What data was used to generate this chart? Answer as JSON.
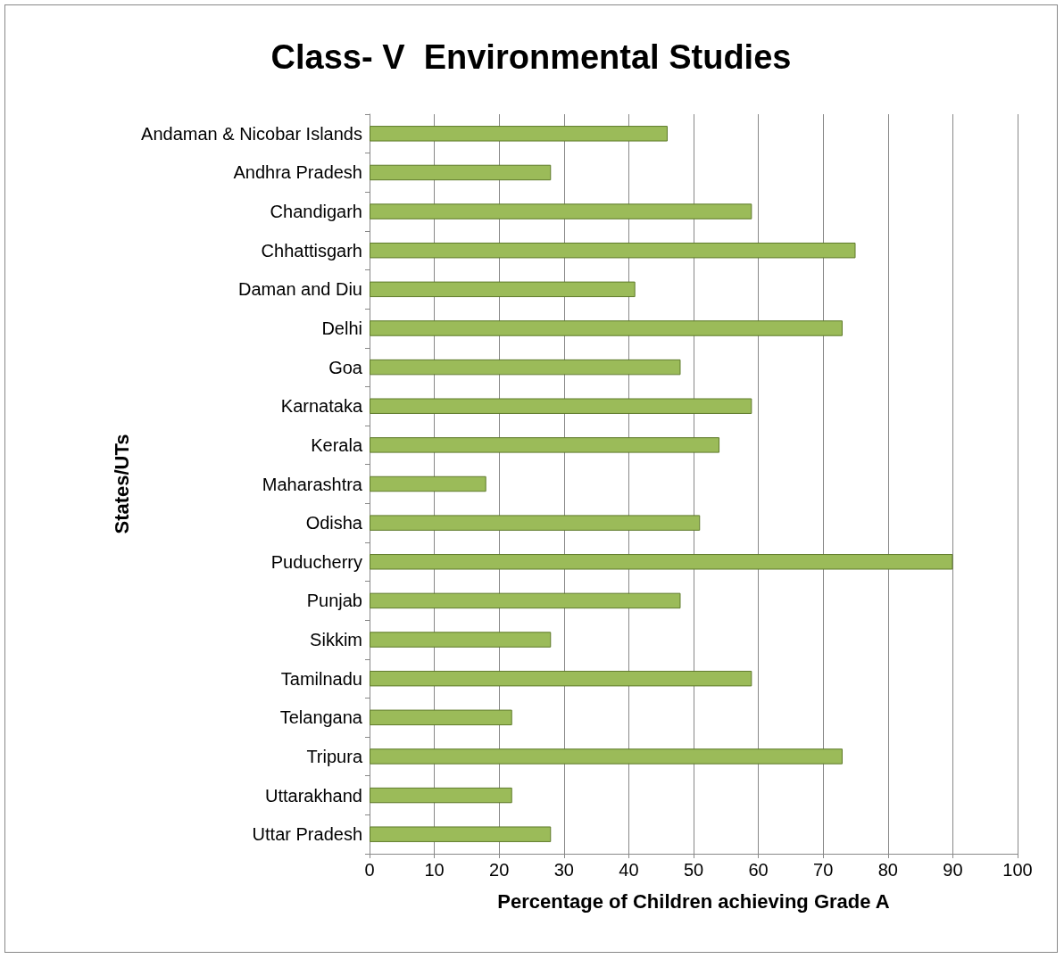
{
  "chart_data": {
    "type": "bar",
    "orientation": "horizontal",
    "title": "Class- V  Environmental Studies",
    "xlabel": "Percentage of Children achieving Grade A",
    "ylabel": "States/UTs",
    "categories": [
      "Andaman & Nicobar Islands",
      "Andhra Pradesh",
      "Chandigarh",
      "Chhattisgarh",
      "Daman and Diu",
      "Delhi",
      "Goa",
      "Karnataka",
      "Kerala",
      "Maharashtra",
      "Odisha",
      "Puducherry",
      "Punjab",
      "Sikkim",
      "Tamilnadu",
      "Telangana",
      "Tripura",
      "Uttarakhand",
      "Uttar Pradesh"
    ],
    "values": [
      46,
      28,
      59,
      75,
      41,
      73,
      48,
      59,
      54,
      18,
      51,
      90,
      48,
      28,
      59,
      22,
      73,
      22,
      28
    ],
    "color": "#9bbb59",
    "xlim": [
      0,
      100
    ],
    "xticks": [
      0,
      10,
      20,
      30,
      40,
      50,
      60,
      70,
      80,
      90,
      100
    ],
    "grid": "x"
  }
}
